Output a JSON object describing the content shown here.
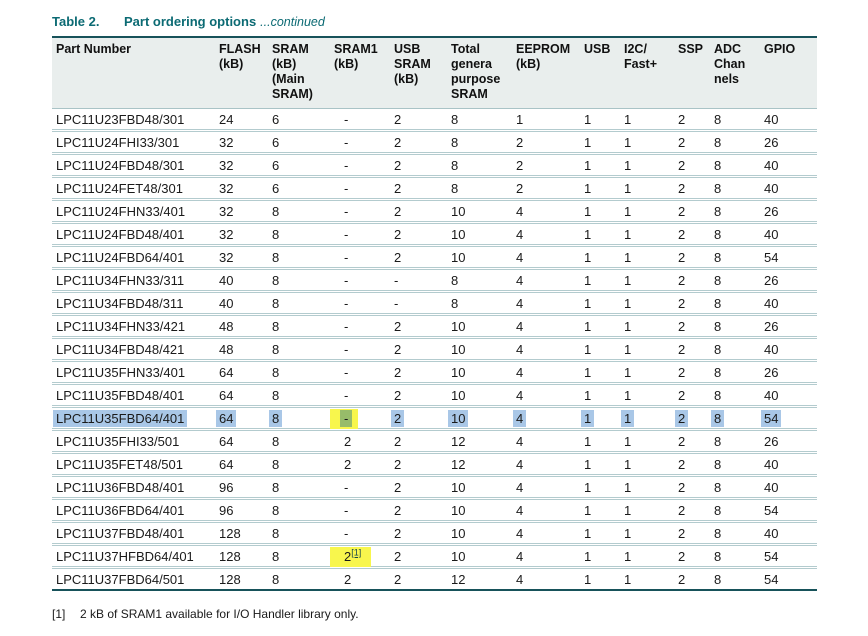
{
  "caption": {
    "label": "Table 2.",
    "title": "Part ordering options",
    "continued": "...continued"
  },
  "table": {
    "columns": [
      "Part Number",
      "FLASH\n(kB)",
      "SRAM\n(kB)\n(Main\nSRAM)",
      "SRAM1\n(kB)",
      "USB\nSRAM\n(kB)",
      "Total\ngenera\npurpose\nSRAM",
      "EEPROM\n(kB)",
      "USB",
      "I2C/\nFast+",
      "SSP",
      "ADC\nChan\nnels",
      "GPIO"
    ],
    "rows": [
      {
        "cells": [
          "LPC11U23FBD48/301",
          "24",
          "6",
          "-",
          "2",
          "8",
          "1",
          "1",
          "1",
          "2",
          "8",
          "40"
        ]
      },
      {
        "cells": [
          "LPC11U24FHI33/301",
          "32",
          "6",
          "-",
          "2",
          "8",
          "2",
          "1",
          "1",
          "2",
          "8",
          "26"
        ]
      },
      {
        "cells": [
          "LPC11U24FBD48/301",
          "32",
          "6",
          "-",
          "2",
          "8",
          "2",
          "1",
          "1",
          "2",
          "8",
          "40"
        ]
      },
      {
        "cells": [
          "LPC11U24FET48/301",
          "32",
          "6",
          "-",
          "2",
          "8",
          "2",
          "1",
          "1",
          "2",
          "8",
          "40"
        ]
      },
      {
        "cells": [
          "LPC11U24FHN33/401",
          "32",
          "8",
          "-",
          "2",
          "10",
          "4",
          "1",
          "1",
          "2",
          "8",
          "26"
        ]
      },
      {
        "cells": [
          "LPC11U24FBD48/401",
          "32",
          "8",
          "-",
          "2",
          "10",
          "4",
          "1",
          "1",
          "2",
          "8",
          "40"
        ]
      },
      {
        "cells": [
          "LPC11U24FBD64/401",
          "32",
          "8",
          "-",
          "2",
          "10",
          "4",
          "1",
          "1",
          "2",
          "8",
          "54"
        ]
      },
      {
        "cells": [
          "LPC11U34FHN33/311",
          "40",
          "8",
          "-",
          "-",
          "8",
          "4",
          "1",
          "1",
          "2",
          "8",
          "26"
        ]
      },
      {
        "cells": [
          "LPC11U34FBD48/311",
          "40",
          "8",
          "-",
          "-",
          "8",
          "4",
          "1",
          "1",
          "2",
          "8",
          "40"
        ]
      },
      {
        "cells": [
          "LPC11U34FHN33/421",
          "48",
          "8",
          "-",
          "2",
          "10",
          "4",
          "1",
          "1",
          "2",
          "8",
          "26"
        ]
      },
      {
        "cells": [
          "LPC11U34FBD48/421",
          "48",
          "8",
          "-",
          "2",
          "10",
          "4",
          "1",
          "1",
          "2",
          "8",
          "40"
        ]
      },
      {
        "cells": [
          "LPC11U35FHN33/401",
          "64",
          "8",
          "-",
          "2",
          "10",
          "4",
          "1",
          "1",
          "2",
          "8",
          "26"
        ]
      },
      {
        "cells": [
          "LPC11U35FBD48/401",
          "64",
          "8",
          "-",
          "2",
          "10",
          "4",
          "1",
          "1",
          "2",
          "8",
          "40"
        ]
      },
      {
        "selected": true,
        "cells": [
          "LPC11U35FBD64/401",
          "64",
          "8",
          {
            "t": "-",
            "hl": true
          },
          "2",
          "10",
          "4",
          "1",
          "1",
          "2",
          "8",
          "54"
        ]
      },
      {
        "cells": [
          "LPC11U35FHI33/501",
          "64",
          "8",
          "2",
          "2",
          "12",
          "4",
          "1",
          "1",
          "2",
          "8",
          "26"
        ]
      },
      {
        "cells": [
          "LPC11U35FET48/501",
          "64",
          "8",
          "2",
          "2",
          "12",
          "4",
          "1",
          "1",
          "2",
          "8",
          "40"
        ]
      },
      {
        "cells": [
          "LPC11U36FBD48/401",
          "96",
          "8",
          "-",
          "2",
          "10",
          "4",
          "1",
          "1",
          "2",
          "8",
          "40"
        ]
      },
      {
        "cells": [
          "LPC11U36FBD64/401",
          "96",
          "8",
          "-",
          "2",
          "10",
          "4",
          "1",
          "1",
          "2",
          "8",
          "54"
        ]
      },
      {
        "cells": [
          "LPC11U37FBD48/401",
          "128",
          "8",
          "-",
          "2",
          "10",
          "4",
          "1",
          "1",
          "2",
          "8",
          "40"
        ]
      },
      {
        "cells": [
          "LPC11U37HFBD64/401",
          "128",
          "8",
          {
            "t": "2",
            "sup": "[1]",
            "hl": true
          },
          "2",
          "10",
          "4",
          "1",
          "1",
          "2",
          "8",
          "54"
        ]
      },
      {
        "cells": [
          "LPC11U37FBD64/501",
          "128",
          "8",
          "2",
          "2",
          "12",
          "4",
          "1",
          "1",
          "2",
          "8",
          "54"
        ]
      }
    ]
  },
  "footnote": {
    "marker": "[1]",
    "text": "2 kB of SRAM1 available for I/O Handler library only."
  },
  "colors": {
    "accent_teal": "#0b6a73",
    "table_rule_dark": "#17525a",
    "table_rule_light": "#b3cbce",
    "header_background": "#e9eeed",
    "selection_blue": "#a9c7e7",
    "search_highlight_yellow": "#f8f64d",
    "selection_over_highlight_green": "#97bc6a"
  }
}
